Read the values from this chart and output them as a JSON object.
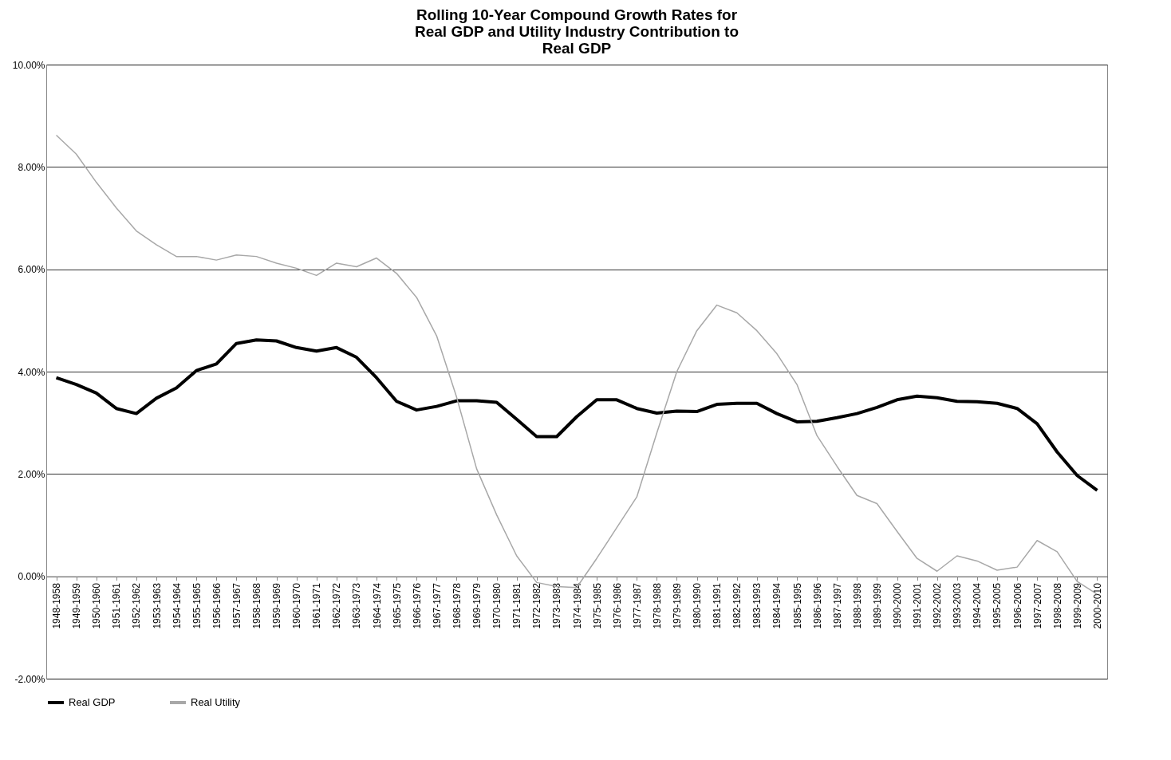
{
  "chart_data": {
    "type": "line",
    "title": [
      "Rolling 10-Year Compound Growth Rates for",
      "Real GDP and Utility Industry Contribution to",
      "Real GDP"
    ],
    "categories": [
      "1948-1958",
      "1949-1959",
      "1950-1960",
      "1951-1961",
      "1952-1962",
      "1953-1963",
      "1954-1964",
      "1955-1965",
      "1956-1966",
      "1957-1967",
      "1958-1968",
      "1959-1969",
      "1960-1970",
      "1961-1971",
      "1962-1972",
      "1963-1973",
      "1964-1974",
      "1965-1975",
      "1966-1976",
      "1967-1977",
      "1968-1978",
      "1969-1979",
      "1970-1980",
      "1971-1981",
      "1972-1982",
      "1973-1983",
      "1974-1984",
      "1975-1985",
      "1976-1986",
      "1977-1987",
      "1978-1988",
      "1979-1989",
      "1980-1990",
      "1981-1991",
      "1982-1992",
      "1983-1993",
      "1984-1994",
      "1985-1995",
      "1986-1996",
      "1987-1997",
      "1988-1998",
      "1989-1999",
      "1990-2000",
      "1991-2001",
      "1992-2002",
      "1993-2003",
      "1994-2004",
      "1995-2005",
      "1996-2006",
      "1997-2007",
      "1998-2008",
      "1999-2009",
      "2000-2010"
    ],
    "series": [
      {
        "name": "Real GDP",
        "color": "#000000",
        "values": [
          3.88,
          3.75,
          3.58,
          3.28,
          3.18,
          3.48,
          3.68,
          4.02,
          4.15,
          4.55,
          4.62,
          4.6,
          4.47,
          4.4,
          4.47,
          4.28,
          3.88,
          3.42,
          3.25,
          3.32,
          3.43,
          3.43,
          3.4,
          3.07,
          2.73,
          2.73,
          3.12,
          3.45,
          3.45,
          3.28,
          3.19,
          3.23,
          3.22,
          3.36,
          3.38,
          3.38,
          3.18,
          3.02,
          3.03,
          3.1,
          3.18,
          3.3,
          3.45,
          3.52,
          3.49,
          3.42,
          3.41,
          3.38,
          3.28,
          2.98,
          2.43,
          1.97,
          1.68
        ]
      },
      {
        "name": "Real Utility",
        "color": "#a8a8a8",
        "values": [
          8.62,
          8.25,
          7.7,
          7.2,
          6.75,
          6.48,
          6.25,
          6.25,
          6.18,
          6.28,
          6.25,
          6.12,
          6.02,
          5.88,
          6.12,
          6.05,
          6.22,
          5.92,
          5.45,
          4.7,
          3.5,
          2.1,
          1.2,
          0.4,
          -0.12,
          -0.2,
          -0.22,
          0.35,
          0.95,
          1.55,
          2.8,
          4.0,
          4.8,
          5.3,
          5.15,
          4.8,
          4.35,
          3.75,
          2.75,
          2.15,
          1.58,
          1.42,
          0.88,
          0.35,
          0.1,
          0.4,
          0.3,
          0.12,
          0.18,
          0.7,
          0.48,
          -0.1,
          -0.35
        ]
      }
    ],
    "ylim": [
      -2,
      10
    ],
    "yticks": [
      {
        "value": -2,
        "label": "-2.00%"
      },
      {
        "value": 0,
        "label": "0.00%"
      },
      {
        "value": 2,
        "label": "2.00%"
      },
      {
        "value": 4,
        "label": "4.00%"
      },
      {
        "value": 6,
        "label": "6.00%"
      },
      {
        "value": 8,
        "label": "8.00%"
      },
      {
        "value": 10,
        "label": "10.00%"
      }
    ],
    "grid": "y",
    "legend": "bottom",
    "marker": "none",
    "line_style": "solid"
  }
}
